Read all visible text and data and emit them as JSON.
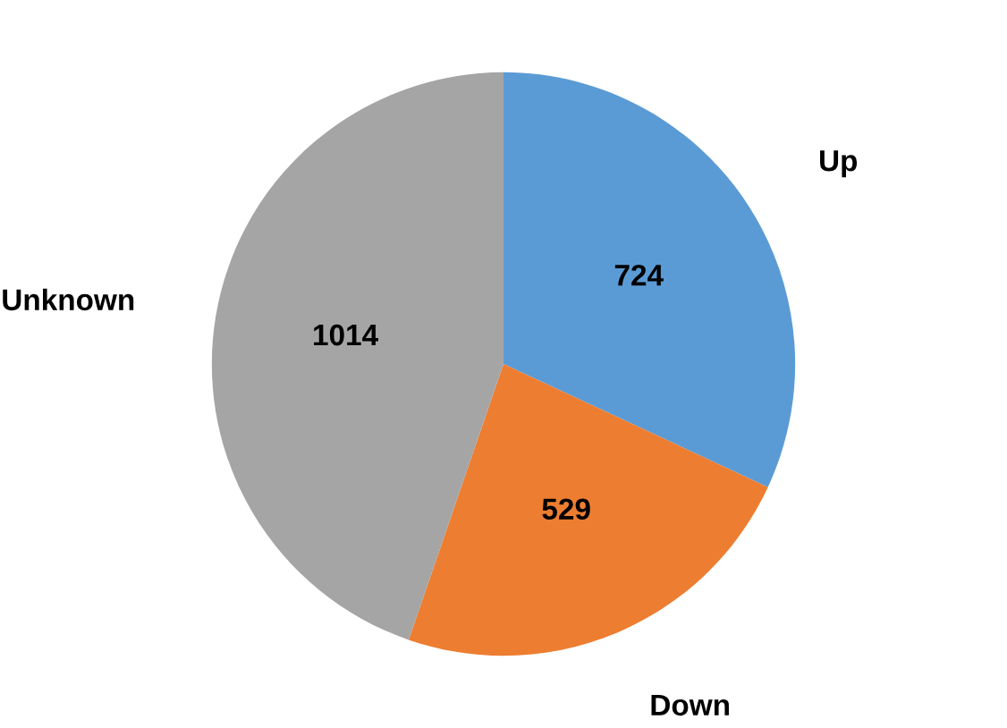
{
  "chart_data": {
    "type": "pie",
    "categories": [
      "Up",
      "Down",
      "Unknown"
    ],
    "values": [
      724,
      529,
      1014
    ],
    "colors": [
      "#5b9bd5",
      "#ed7d31",
      "#a5a5a5"
    ],
    "data_labels": true,
    "legend": false
  }
}
